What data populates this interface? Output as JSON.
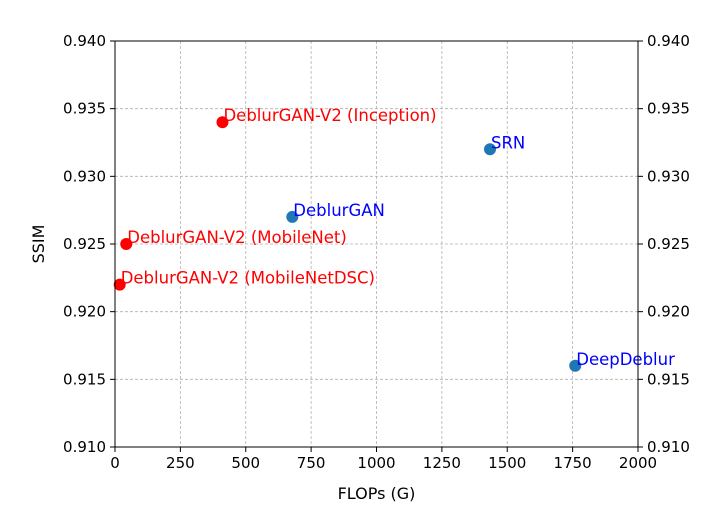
{
  "chart_data": {
    "type": "scatter",
    "title": "",
    "xlabel": "FLOPs (G)",
    "ylabel": "SSIM",
    "xlim": [
      0,
      2000
    ],
    "ylim": [
      0.91,
      0.94
    ],
    "xticks": [
      "0",
      "250",
      "500",
      "750",
      "1000",
      "1250",
      "1500",
      "1750",
      "2000"
    ],
    "yticks": [
      "0.910",
      "0.915",
      "0.920",
      "0.925",
      "0.930",
      "0.935",
      "0.940"
    ],
    "grid": true,
    "right_axis_ticks": true,
    "colors": {
      "highlight_point": "#ff0000",
      "default_point": "#1f77b4",
      "highlight_label": "#ff0000",
      "default_label": "#0000ff"
    },
    "points": [
      {
        "label": "DeblurGAN-V2 (Inception)",
        "x": 411,
        "y": 0.934,
        "group": "highlight"
      },
      {
        "label": "DeblurGAN-V2 (MobileNet)",
        "x": 43,
        "y": 0.925,
        "group": "highlight"
      },
      {
        "label": "DeblurGAN-V2 (MobileNetDSC)",
        "x": 18,
        "y": 0.922,
        "group": "highlight"
      },
      {
        "label": "SRN",
        "x": 1434,
        "y": 0.932,
        "group": "default"
      },
      {
        "label": "DeblurGAN",
        "x": 678,
        "y": 0.927,
        "group": "default"
      },
      {
        "label": "DeepDeblur",
        "x": 1760,
        "y": 0.916,
        "group": "default"
      }
    ]
  }
}
